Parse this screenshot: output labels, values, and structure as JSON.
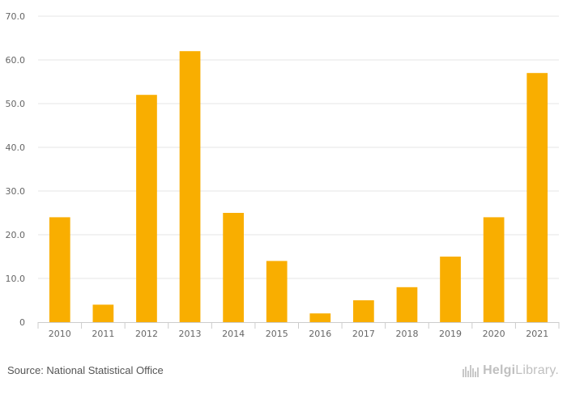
{
  "chart_data": {
    "type": "bar",
    "title": "",
    "xlabel": "",
    "ylabel": "",
    "categories": [
      "2010",
      "2011",
      "2012",
      "2013",
      "2014",
      "2015",
      "2016",
      "2017",
      "2018",
      "2019",
      "2020",
      "2021"
    ],
    "values": [
      24,
      4,
      52,
      62,
      25,
      14,
      2,
      5,
      8,
      15,
      24,
      57
    ],
    "ylim": [
      0,
      70
    ],
    "yticks": [
      0,
      10,
      20,
      30,
      40,
      50,
      60,
      70
    ],
    "ytick_labels": [
      "0",
      "10.0",
      "20.0",
      "30.0",
      "40.0",
      "50.0",
      "60.0",
      "70.0"
    ],
    "grid": true,
    "bar_color": "#f9ae00",
    "grid_color": "#e6e6e6"
  },
  "footer": {
    "source": "Source: National Statistical Office",
    "logo_bold": "Helgi",
    "logo_rest": "Library."
  }
}
